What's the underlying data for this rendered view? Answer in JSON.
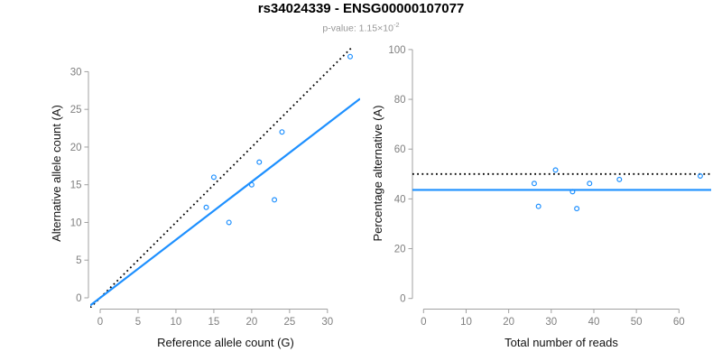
{
  "header": {
    "title": "rs34024339 - ENSG00000107077",
    "pvalue": {
      "label": "p-value: ",
      "mantissa": "1.15",
      "times": "×",
      "base": "10",
      "exponent": "-2"
    }
  },
  "colors": {
    "point_blue": "#1E90FF",
    "line_blue": "#1E90FF",
    "reference_line_black": "#000000",
    "axis_line_gray": "#A0A0A0",
    "tick_label_gray": "#7F7F7F",
    "axis_title_black": "#111111",
    "subtitle_gray": "#979797",
    "background": "#FFFFFF"
  },
  "chart_data": [
    {
      "id": "allele-counts",
      "type": "scatter",
      "title": "",
      "xlabel": "Reference allele count (G)",
      "ylabel": "Alternative allele count (A)",
      "points": [
        [
          14,
          12
        ],
        [
          15,
          16
        ],
        [
          17,
          10
        ],
        [
          20,
          15
        ],
        [
          21,
          18
        ],
        [
          23,
          13
        ],
        [
          24,
          22
        ],
        [
          33,
          32
        ]
      ],
      "xticks": [
        0,
        5,
        10,
        15,
        20,
        25,
        30
      ],
      "yticks": [
        0,
        5,
        10,
        15,
        20,
        25,
        30
      ],
      "xlim": [
        0,
        33
      ],
      "ylim": [
        0,
        32.3
      ],
      "grid": false,
      "marker": "open-circle",
      "lines": [
        {
          "name": "identity-line",
          "style": "dotted",
          "color": "black",
          "slope": 1,
          "intercept": 0
        },
        {
          "name": "fit-line",
          "style": "solid",
          "color": "blue",
          "slope": 0.77,
          "intercept": 0
        }
      ]
    },
    {
      "id": "percentage-alternative",
      "type": "scatter",
      "title": "",
      "xlabel": "Total number of reads",
      "ylabel": "Percentage alternative (A)",
      "points": [
        [
          26,
          46.2
        ],
        [
          27,
          37.0
        ],
        [
          31,
          51.6
        ],
        [
          35,
          42.9
        ],
        [
          36,
          36.1
        ],
        [
          39,
          46.2
        ],
        [
          46,
          47.8
        ],
        [
          65,
          49.2
        ]
      ],
      "xticks": [
        0,
        10,
        20,
        30,
        40,
        50,
        60
      ],
      "yticks": [
        0,
        20,
        40,
        60,
        80,
        100
      ],
      "xlim": [
        0,
        65
      ],
      "ylim": [
        0,
        100
      ],
      "grid": false,
      "marker": "open-circle",
      "lines": [
        {
          "name": "null-line",
          "style": "dotted",
          "color": "black",
          "slope": 0,
          "intercept": 50
        },
        {
          "name": "fit-line",
          "style": "solid",
          "color": "blue",
          "slope": 0,
          "intercept": 43.6
        }
      ]
    }
  ]
}
